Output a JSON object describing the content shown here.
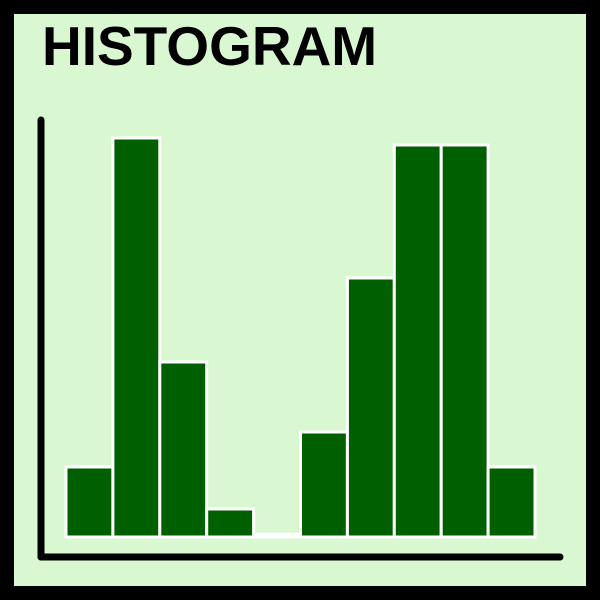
{
  "chart_data": {
    "type": "bar",
    "title": "HISTOGRAM",
    "xlabel": "",
    "ylabel": "",
    "values": [
      5,
      28.5,
      12.5,
      2,
      0.2,
      7.5,
      18.5,
      28,
      28,
      5
    ],
    "ylim": [
      0,
      30
    ],
    "grid": false,
    "legend": "none"
  },
  "colors": {
    "background": "#d9f8d1",
    "border": "#000000",
    "bar_fill": "#006000",
    "bar_stroke": "#ffffff",
    "axis": "#000000"
  }
}
